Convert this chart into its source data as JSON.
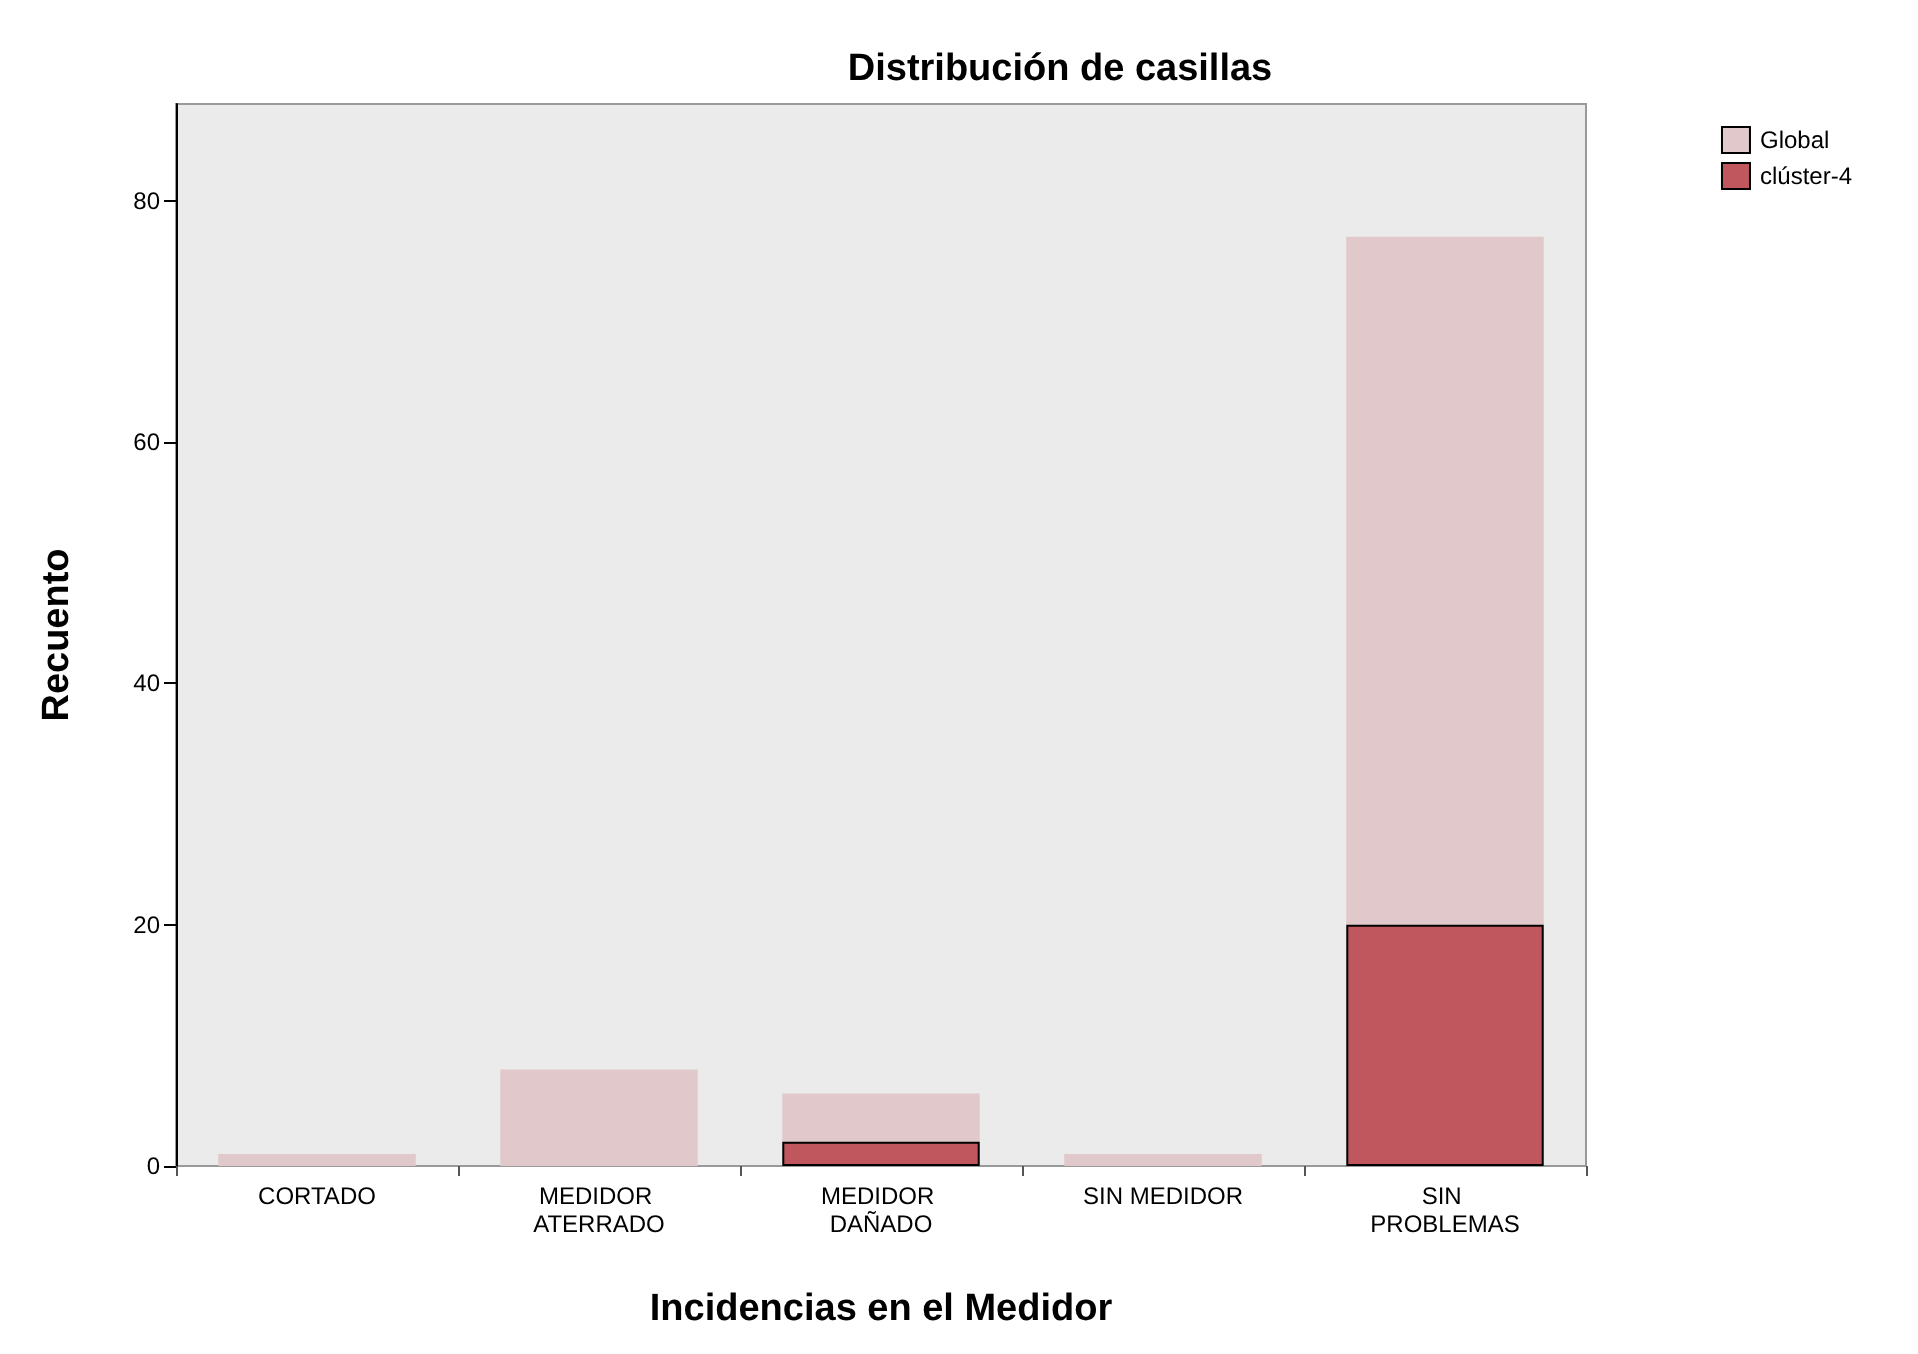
{
  "chart_data": {
    "type": "bar",
    "title": "Distribución de casillas",
    "xlabel": "Incidencias en el Medidor",
    "ylabel": "Recuento",
    "categories": [
      "CORTADO",
      "MEDIDOR ATERRADO",
      "MEDIDOR DAÑADO",
      "SIN MEDIDOR",
      "SIN PROBLEMAS"
    ],
    "series": [
      {
        "name": "Global",
        "color": "#e0c8cb",
        "values": [
          1,
          8,
          6,
          1,
          77
        ]
      },
      {
        "name": "clúster-4",
        "color": "#c1575e",
        "values": [
          null,
          null,
          2,
          null,
          20
        ]
      }
    ],
    "ylim": [
      0,
      88
    ],
    "yticks": [
      0,
      20,
      40,
      60,
      80
    ],
    "grid": false,
    "legend": "top right"
  }
}
